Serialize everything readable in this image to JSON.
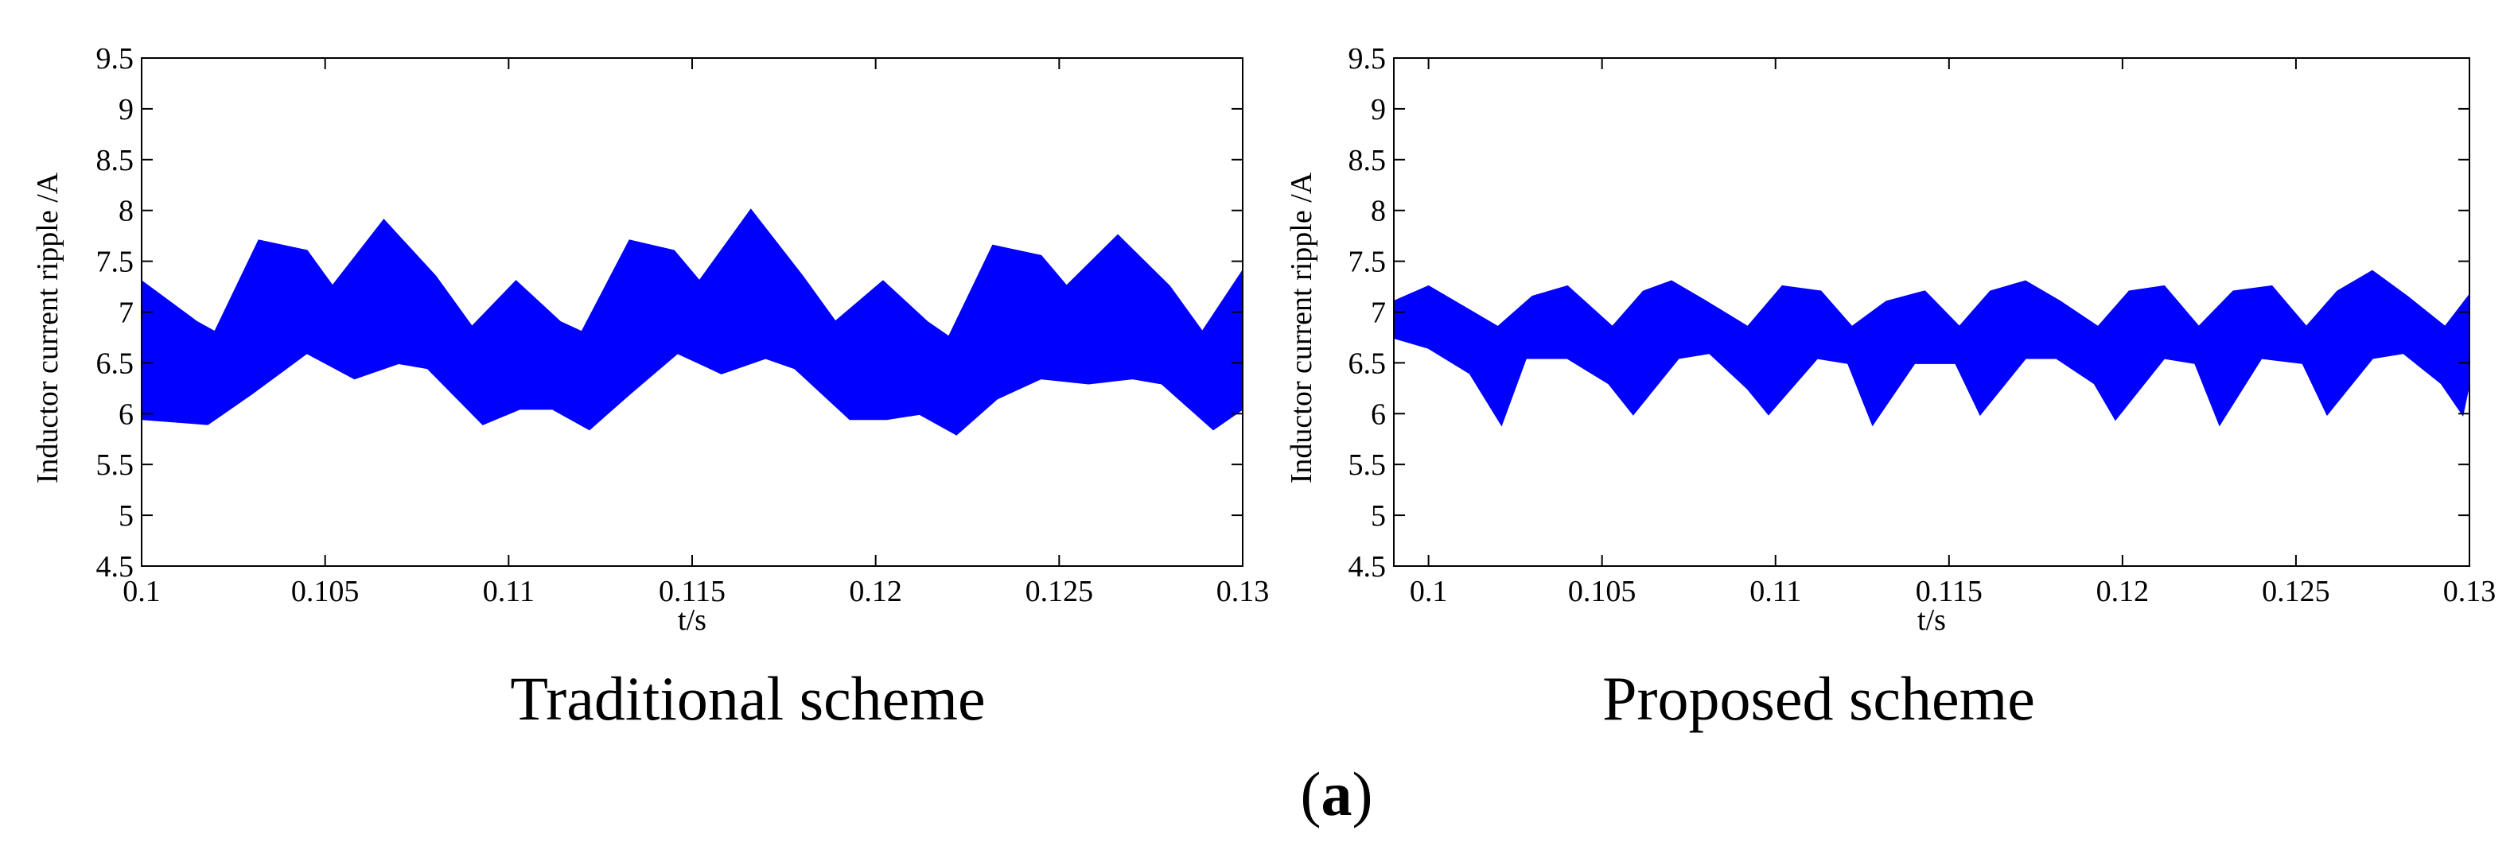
{
  "figure": {
    "caption_prefix": "(",
    "caption_letter": "a",
    "caption_suffix": ")"
  },
  "chart_data": [
    {
      "type": "area",
      "title": "Traditional scheme",
      "xlabel": "t/s",
      "ylabel": "Inductor current ripple /A",
      "xlim": [
        0.1,
        0.13
      ],
      "ylim": [
        4.5,
        9.5
      ],
      "xticks": [
        "0.1",
        "0.105",
        "0.11",
        "0.115",
        "0.12",
        "0.125",
        "0.13"
      ],
      "yticks": [
        "4.5",
        "5",
        "5.5",
        "6",
        "6.5",
        "7",
        "7.5",
        "8",
        "8.5",
        "9",
        "9.5"
      ],
      "grid": false,
      "color": "#0000ff",
      "series": [
        {
          "name": "upper envelope",
          "x": [
            0.1,
            0.1015,
            0.102,
            0.1032,
            0.1045,
            0.1052,
            0.1066,
            0.108,
            0.109,
            0.1102,
            0.1114,
            0.112,
            0.1133,
            0.1145,
            0.1152,
            0.1166,
            0.118,
            0.1189,
            0.1202,
            0.1214,
            0.122,
            0.1232,
            0.1245,
            0.1252,
            0.1266,
            0.128,
            0.1289,
            0.13
          ],
          "values": [
            7.3,
            6.9,
            6.8,
            7.7,
            7.6,
            7.25,
            7.9,
            7.35,
            6.85,
            7.3,
            6.9,
            6.8,
            7.7,
            7.6,
            7.3,
            8.0,
            7.35,
            6.9,
            7.3,
            6.9,
            6.75,
            7.65,
            7.55,
            7.25,
            7.75,
            7.25,
            6.8,
            7.4
          ]
        },
        {
          "name": "lower envelope",
          "x": [
            0.1,
            0.1018,
            0.103,
            0.1045,
            0.1058,
            0.107,
            0.1078,
            0.1093,
            0.1103,
            0.1112,
            0.1122,
            0.1133,
            0.1146,
            0.1158,
            0.117,
            0.1178,
            0.1193,
            0.1203,
            0.1212,
            0.1222,
            0.1233,
            0.1245,
            0.1258,
            0.127,
            0.1278,
            0.1292,
            0.13
          ],
          "values": [
            5.95,
            5.9,
            6.2,
            6.6,
            6.35,
            6.5,
            6.45,
            5.9,
            6.05,
            6.05,
            5.85,
            6.2,
            6.6,
            6.4,
            6.55,
            6.45,
            5.95,
            5.95,
            6.0,
            5.8,
            6.15,
            6.35,
            6.3,
            6.35,
            6.3,
            5.85,
            6.05
          ]
        }
      ]
    },
    {
      "type": "area",
      "title": "Proposed scheme",
      "xlabel": "t/s",
      "ylabel": "Inductor current ripple /A",
      "xlim": [
        0.099,
        0.13
      ],
      "ylim": [
        4.5,
        9.5
      ],
      "xticks": [
        "0.1",
        "0.105",
        "0.11",
        "0.115",
        "0.12",
        "0.125",
        "0.13"
      ],
      "yticks": [
        "4.5",
        "5",
        "5.5",
        "6",
        "6.5",
        "7",
        "7.5",
        "8",
        "8.5",
        "9",
        "9.5"
      ],
      "grid": false,
      "color": "#0000ff",
      "series": [
        {
          "name": "upper envelope",
          "x": [
            0.099,
            0.1,
            0.102,
            0.103,
            0.104,
            0.1053,
            0.1062,
            0.107,
            0.108,
            0.1092,
            0.1102,
            0.1113,
            0.1122,
            0.1132,
            0.1143,
            0.1153,
            0.1162,
            0.1172,
            0.1182,
            0.1193,
            0.1202,
            0.1212,
            0.1222,
            0.1232,
            0.1243,
            0.1253,
            0.1262,
            0.1272,
            0.1282,
            0.1293,
            0.1302
          ],
          "values": [
            7.1,
            7.25,
            6.85,
            7.15,
            7.25,
            6.85,
            7.2,
            7.3,
            7.1,
            6.85,
            7.25,
            7.2,
            6.85,
            7.1,
            7.2,
            6.85,
            7.2,
            7.3,
            7.1,
            6.85,
            7.2,
            7.25,
            6.85,
            7.2,
            7.25,
            6.85,
            7.2,
            7.4,
            7.15,
            6.85,
            7.25
          ]
        },
        {
          "name": "lower envelope",
          "x": [
            0.099,
            0.1,
            0.1012,
            0.1021,
            0.1028,
            0.104,
            0.1052,
            0.1059,
            0.1072,
            0.1081,
            0.1092,
            0.1098,
            0.1112,
            0.1121,
            0.1128,
            0.114,
            0.1152,
            0.1159,
            0.1172,
            0.1181,
            0.1192,
            0.1198,
            0.1212,
            0.1221,
            0.1228,
            0.124,
            0.1252,
            0.1259,
            0.1272,
            0.1281,
            0.1292,
            0.1298,
            0.1302
          ],
          "values": [
            6.75,
            6.65,
            6.4,
            5.9,
            6.55,
            6.55,
            6.3,
            6.0,
            6.55,
            6.6,
            6.25,
            6.0,
            6.55,
            6.5,
            5.9,
            6.5,
            6.5,
            6.0,
            6.55,
            6.55,
            6.3,
            5.95,
            6.55,
            6.5,
            5.9,
            6.55,
            6.5,
            6.0,
            6.55,
            6.6,
            6.3,
            6.0,
            6.65
          ]
        }
      ]
    }
  ]
}
